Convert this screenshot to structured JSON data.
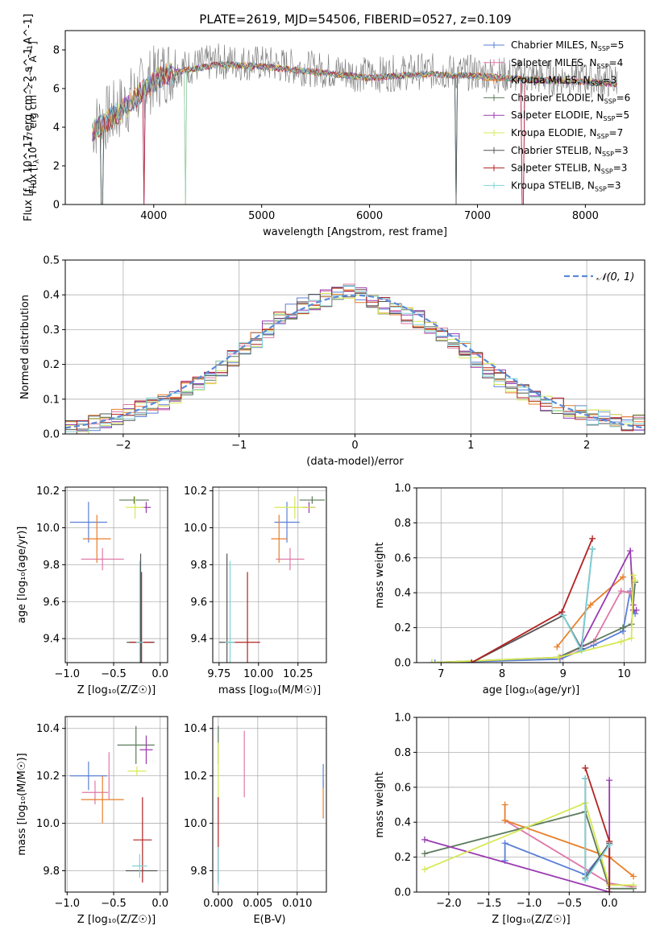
{
  "figure_title": "PLATE=2619, MJD=54506, FIBERID=0527, z=0.109",
  "colors": {
    "Chabrier MILES": "#5b7fd6",
    "Salpeter MILES": "#e078a8",
    "Kroupa MILES": "#e87f2a",
    "Chabrier ELODIE": "#5c7a5c",
    "Salpeter ELODIE": "#9a3bb0",
    "Kroupa ELODIE": "#d7e855",
    "Chabrier STELIB": "#555555",
    "Salpeter STELIB": "#b22222",
    "Kroupa STELIB": "#7fd3d8"
  },
  "chart_data": [
    {
      "id": "spectrum",
      "type": "line",
      "title": "PLATE=2619, MJD=54506, FIBERID=0527, z=0.109",
      "xlabel": "wavelength [Angstrom, rest frame]",
      "ylabel": "Flux [f_λ 10^-17 erg cm^-2 s^-1 A^-1]",
      "xlim": [
        3180,
        8550
      ],
      "ylim": [
        0,
        9
      ],
      "xticks": [
        4000,
        5000,
        6000,
        7000,
        8000
      ],
      "yticks": [
        0,
        2,
        4,
        6,
        8
      ],
      "legend_position": "right",
      "legend": [
        {
          "label": "Chabrier MILES, N_SSP=5"
        },
        {
          "label": "Salpeter MILES, N_SSP=4"
        },
        {
          "label": "Kroupa MILES, N_SSP=3"
        },
        {
          "label": "Chabrier ELODIE, N_SSP=6"
        },
        {
          "label": "Salpeter ELODIE, N_SSP=5"
        },
        {
          "label": "Kroupa ELODIE, N_SSP=7"
        },
        {
          "label": "Chabrier STELIB, N_SSP=3"
        },
        {
          "label": "Salpeter STELIB, N_SSP=3"
        },
        {
          "label": "Kroupa STELIB, N_SSP=3"
        }
      ],
      "data_envelope": {
        "x": [
          3430,
          3600,
          3800,
          3950,
          4100,
          4300,
          4600,
          5000,
          5500,
          6000,
          6500,
          7000,
          7500,
          8000,
          8300
        ],
        "y": [
          4.0,
          4.6,
          5.5,
          6.3,
          6.9,
          7.1,
          7.4,
          7.3,
          7.0,
          6.7,
          6.9,
          6.8,
          6.6,
          6.5,
          6.4
        ]
      },
      "drops": [
        {
          "x": 3520,
          "y": 0.0
        },
        {
          "x": 3910,
          "y": 0.0
        },
        {
          "x": 4290,
          "y": 0.0
        },
        {
          "x": 6800,
          "y": 0.0
        },
        {
          "x": 7420,
          "y": 0.0
        }
      ]
    },
    {
      "id": "residuals",
      "type": "bar",
      "xlabel": "(data-model)/error",
      "ylabel": "Normed distribution",
      "xlim": [
        -2.5,
        2.5
      ],
      "ylim": [
        0,
        0.5
      ],
      "xticks": [
        -2,
        -1,
        0,
        1,
        2
      ],
      "yticks": [
        0.0,
        0.1,
        0.2,
        0.3,
        0.4,
        0.5
      ],
      "legend": [
        {
          "label": "𝒩(0, 1)"
        }
      ],
      "legend_position": "top-right",
      "bin_width": 0.1,
      "bin_start": -2.5,
      "hist_values": [
        0.02,
        0.02,
        0.03,
        0.04,
        0.05,
        0.06,
        0.07,
        0.08,
        0.09,
        0.11,
        0.13,
        0.15,
        0.16,
        0.19,
        0.22,
        0.24,
        0.27,
        0.3,
        0.33,
        0.35,
        0.37,
        0.38,
        0.39,
        0.4,
        0.41,
        0.4,
        0.38,
        0.37,
        0.36,
        0.34,
        0.33,
        0.31,
        0.29,
        0.27,
        0.24,
        0.21,
        0.18,
        0.16,
        0.14,
        0.12,
        0.1,
        0.09,
        0.08,
        0.07,
        0.06,
        0.05,
        0.05,
        0.04,
        0.03,
        0.03
      ]
    },
    {
      "id": "age_vs_Z",
      "type": "scatter",
      "xlabel": "Z [log10(Z/Z☉)]",
      "ylabel": "age [log10(age/yr)]",
      "xlim": [
        -1.02,
        0.08
      ],
      "ylim": [
        9.27,
        10.22
      ],
      "xticks": [
        -1.0,
        -0.5,
        0.0
      ],
      "xtick_labels": [
        "−1.0",
        "−0.5",
        "0.0"
      ],
      "yticks": [
        9.4,
        9.6,
        9.8,
        10.0,
        10.2
      ],
      "points": [
        {
          "series": "Chabrier MILES",
          "x": -0.77,
          "y": 10.03,
          "xerr": 0.2,
          "yerr": 0.11
        },
        {
          "series": "Salpeter MILES",
          "x": -0.62,
          "y": 9.83,
          "xerr": 0.23,
          "yerr": 0.06
        },
        {
          "series": "Kroupa MILES",
          "x": -0.68,
          "y": 9.94,
          "xerr": 0.15,
          "yerr": 0.13
        },
        {
          "series": "Chabrier ELODIE",
          "x": -0.28,
          "y": 10.15,
          "xerr": 0.16,
          "yerr": 0.02
        },
        {
          "series": "Salpeter ELODIE",
          "x": -0.15,
          "y": 10.11,
          "xerr": 0.05,
          "yerr": 0.03
        },
        {
          "series": "Kroupa ELODIE",
          "x": -0.27,
          "y": 10.11,
          "xerr": 0.1,
          "yerr": 0.06
        },
        {
          "series": "Chabrier STELIB",
          "x": -0.21,
          "y": 9.38,
          "xerr": 0.15,
          "yerr": 0.48
        },
        {
          "series": "Salpeter STELIB",
          "x": -0.2,
          "y": 9.38,
          "xerr": 0.13,
          "yerr": 0.38
        },
        {
          "series": "Kroupa STELIB",
          "x": -0.22,
          "y": 9.38,
          "xerr": 0.04,
          "yerr": 0.44
        }
      ]
    },
    {
      "id": "age_vs_mass",
      "type": "scatter",
      "xlabel": "mass [log10(M/M☉)]",
      "ylabel": "",
      "xlim": [
        9.71,
        10.43
      ],
      "ylim": [
        9.27,
        10.22
      ],
      "xticks": [
        9.75,
        10.0,
        10.25
      ],
      "xtick_labels": [
        "9.75",
        "10.00",
        "10.25"
      ],
      "yticks": [
        9.4,
        9.6,
        9.8,
        10.0,
        10.2
      ],
      "points": [
        {
          "series": "Chabrier MILES",
          "x": 10.18,
          "y": 10.03,
          "xerr": 0.08,
          "yerr": 0.11
        },
        {
          "series": "Salpeter MILES",
          "x": 10.2,
          "y": 9.83,
          "xerr": 0.09,
          "yerr": 0.06
        },
        {
          "series": "Kroupa MILES",
          "x": 10.13,
          "y": 9.94,
          "xerr": 0.05,
          "yerr": 0.13
        },
        {
          "series": "Chabrier ELODIE",
          "x": 10.34,
          "y": 10.15,
          "xerr": 0.08,
          "yerr": 0.02
        },
        {
          "series": "Salpeter ELODIE",
          "x": 10.32,
          "y": 10.11,
          "xerr": 0.04,
          "yerr": 0.03
        },
        {
          "series": "Kroupa ELODIE",
          "x": 10.23,
          "y": 10.11,
          "xerr": 0.13,
          "yerr": 0.06
        },
        {
          "series": "Chabrier STELIB",
          "x": 9.8,
          "y": 9.38,
          "xerr": 0.05,
          "yerr": 0.48
        },
        {
          "series": "Salpeter STELIB",
          "x": 9.93,
          "y": 9.38,
          "xerr": 0.08,
          "yerr": 0.38
        },
        {
          "series": "Kroupa STELIB",
          "x": 9.82,
          "y": 9.38,
          "xerr": 0.03,
          "yerr": 0.44
        }
      ]
    },
    {
      "id": "mass_weight_vs_age",
      "type": "line",
      "xlabel": "age [log10(age/yr)]",
      "ylabel": "mass weight",
      "xlim": [
        6.6,
        10.35
      ],
      "ylim": [
        0,
        1
      ],
      "xticks": [
        7,
        8,
        9,
        10
      ],
      "yticks": [
        0.0,
        0.2,
        0.4,
        0.6,
        0.8,
        1.0
      ],
      "series": [
        {
          "name": "Chabrier MILES",
          "x": [
            6.9,
            8.95,
            9.5,
            9.98,
            10.1,
            10.15,
            10.18
          ],
          "y": [
            0.0,
            0.02,
            0.1,
            0.18,
            0.41,
            0.3,
            0.28
          ]
        },
        {
          "name": "Salpeter MILES",
          "x": [
            8.95,
            9.5,
            9.95,
            10.1
          ],
          "y": [
            0.03,
            0.12,
            0.41,
            0.4
          ]
        },
        {
          "name": "Kroupa MILES",
          "x": [
            8.9,
            9.45,
            9.98
          ],
          "y": [
            0.09,
            0.33,
            0.49
          ]
        },
        {
          "name": "Chabrier ELODIE",
          "x": [
            6.85,
            8.92,
            9.98,
            10.12,
            10.18
          ],
          "y": [
            0.0,
            0.03,
            0.2,
            0.22,
            0.46
          ]
        },
        {
          "name": "Salpeter ELODIE",
          "x": [
            9.3,
            10.1,
            10.15,
            10.15,
            10.2
          ],
          "y": [
            0.1,
            0.64,
            0.33,
            0.3,
            0.3
          ]
        },
        {
          "name": "Kroupa ELODIE",
          "x": [
            6.85,
            8.92,
            9.95,
            10.12,
            10.15,
            10.18
          ],
          "y": [
            0.0,
            0.03,
            0.12,
            0.14,
            0.5,
            0.47
          ]
        },
        {
          "name": "Chabrier STELIB",
          "x": [
            7.5,
            9.0,
            9.3,
            9.48
          ],
          "y": [
            0.0,
            0.27,
            0.08,
            0.65
          ]
        },
        {
          "name": "Salpeter STELIB",
          "x": [
            7.5,
            8.98,
            9.48
          ],
          "y": [
            0.0,
            0.29,
            0.71
          ]
        },
        {
          "name": "Kroupa STELIB",
          "x": [
            9.0,
            9.3,
            9.48
          ],
          "y": [
            0.27,
            0.07,
            0.65
          ]
        }
      ]
    },
    {
      "id": "mass_vs_Z",
      "type": "scatter",
      "xlabel": "Z [log10(Z/Z☉)]",
      "ylabel": "mass [log10(M/M☉)]",
      "xlim": [
        -1.02,
        0.08
      ],
      "ylim": [
        9.71,
        10.45
      ],
      "xticks": [
        -1.0,
        -0.5,
        0.0
      ],
      "xtick_labels": [
        "−1.0",
        "−0.5",
        "0.0"
      ],
      "yticks": [
        9.8,
        10.0,
        10.2,
        10.4
      ],
      "points": [
        {
          "series": "Chabrier MILES",
          "x": -0.77,
          "y": 10.2,
          "xerr": 0.2,
          "yerr": 0.06
        },
        {
          "series": "Salpeter MILES",
          "x": -0.7,
          "y": 10.13,
          "xerr": 0.14,
          "yerr": 0.05
        },
        {
          "series": "Kroupa MILES",
          "x": -0.62,
          "y": 10.1,
          "xerr": 0.23,
          "yerr": 0.1
        },
        {
          "series": "Salpeter MILES",
          "x": -0.55,
          "y": 10.2,
          "xerr": 0.0,
          "yerr": 0.1
        },
        {
          "series": "Chabrier ELODIE",
          "x": -0.26,
          "y": 10.33,
          "xerr": 0.2,
          "yerr": 0.08
        },
        {
          "series": "Salpeter ELODIE",
          "x": -0.15,
          "y": 10.31,
          "xerr": 0.07,
          "yerr": 0.06
        },
        {
          "series": "Kroupa ELODIE",
          "x": -0.25,
          "y": 10.22,
          "xerr": 0.1,
          "yerr": 0.02
        },
        {
          "series": "Chabrier STELIB",
          "x": -0.2,
          "y": 9.8,
          "xerr": 0.17,
          "yerr": 0.0
        },
        {
          "series": "Salpeter STELIB",
          "x": -0.19,
          "y": 9.93,
          "xerr": 0.1,
          "yerr": 0.18
        },
        {
          "series": "Kroupa STELIB",
          "x": -0.22,
          "y": 9.82,
          "xerr": 0.08,
          "yerr": 0.05
        }
      ]
    },
    {
      "id": "mass_vs_ebv",
      "type": "scatter",
      "xlabel": "E(B-V)",
      "ylabel": "",
      "xlim": [
        -0.0007,
        0.0137
      ],
      "ylim": [
        9.71,
        10.45
      ],
      "xticks": [
        0.0,
        0.005,
        0.01
      ],
      "xtick_labels": [
        "0.000",
        "0.005",
        "0.010"
      ],
      "yticks": [
        9.8,
        10.0,
        10.2,
        10.4
      ],
      "points": [
        {
          "series": "Chabrier ELODIE",
          "x": 0.0,
          "y": 10.33,
          "xerr": 0.0,
          "yerr": 0.08
        },
        {
          "series": "Kroupa ELODIE",
          "x": 0.0,
          "y": 10.22,
          "xerr": 0.0,
          "yerr": 0.12
        },
        {
          "series": "Salpeter STELIB",
          "x": 0.0,
          "y": 9.93,
          "xerr": 0.0,
          "yerr": 0.18
        },
        {
          "series": "Kroupa STELIB",
          "x": 0.0,
          "y": 9.82,
          "xerr": 0.0,
          "yerr": 0.08
        },
        {
          "series": "Salpeter MILES",
          "x": 0.0033,
          "y": 10.25,
          "xerr": 0.0,
          "yerr": 0.14
        },
        {
          "series": "Kroupa MILES",
          "x": 0.0133,
          "y": 10.1,
          "xerr": 0.0,
          "yerr": 0.08
        },
        {
          "series": "Chabrier MILES",
          "x": 0.0133,
          "y": 10.2,
          "xerr": 0.0,
          "yerr": 0.05
        }
      ]
    },
    {
      "id": "mass_weight_vs_Z",
      "type": "line",
      "xlabel": "Z [log10(Z/Z☉)]",
      "ylabel": "mass weight",
      "xlim": [
        -2.4,
        0.45
      ],
      "ylim": [
        0,
        1
      ],
      "xticks": [
        -2.0,
        -1.5,
        -1.0,
        -0.5,
        0.0
      ],
      "xtick_labels": [
        "−2.0",
        "−1.5",
        "−1.0",
        "−0.5",
        "0.0"
      ],
      "yticks": [
        0.0,
        0.2,
        0.4,
        0.6,
        0.8,
        1.0
      ],
      "series": [
        {
          "name": "Chabrier MILES",
          "x": [
            -1.3,
            -1.3,
            -0.3,
            0.0,
            0.0,
            0.3
          ],
          "y": [
            0.18,
            0.28,
            0.1,
            0.27,
            0.05,
            0.03
          ]
        },
        {
          "name": "Salpeter MILES",
          "x": [
            -1.3,
            0.0,
            0.3
          ],
          "y": [
            0.41,
            0.05,
            0.03
          ]
        },
        {
          "name": "Kroupa MILES",
          "x": [
            -1.3,
            -1.3,
            0.0,
            0.3
          ],
          "y": [
            0.5,
            0.41,
            0.2,
            0.09
          ]
        },
        {
          "name": "Chabrier ELODIE",
          "x": [
            -2.3,
            -0.3,
            0.0,
            0.3
          ],
          "y": [
            0.22,
            0.46,
            0.02,
            0.02
          ]
        },
        {
          "name": "Salpeter ELODIE",
          "x": [
            -2.3,
            0.0,
            0.0,
            0.0
          ],
          "y": [
            0.3,
            0.0,
            0.64,
            0.0
          ]
        },
        {
          "name": "Kroupa ELODIE",
          "x": [
            -2.3,
            -0.3,
            0.0,
            0.3
          ],
          "y": [
            0.13,
            0.51,
            0.04,
            0.04
          ]
        },
        {
          "name": "Chabrier STELIB",
          "x": [
            -0.3,
            -0.3,
            0.0
          ],
          "y": [
            0.65,
            0.08,
            0.28
          ]
        },
        {
          "name": "Salpeter STELIB",
          "x": [
            -0.3,
            0.0,
            0.0
          ],
          "y": [
            0.71,
            0.29,
            0.0
          ]
        },
        {
          "name": "Kroupa STELIB",
          "x": [
            -0.3,
            -0.3,
            0.0
          ],
          "y": [
            0.65,
            0.07,
            0.27
          ]
        }
      ]
    }
  ]
}
